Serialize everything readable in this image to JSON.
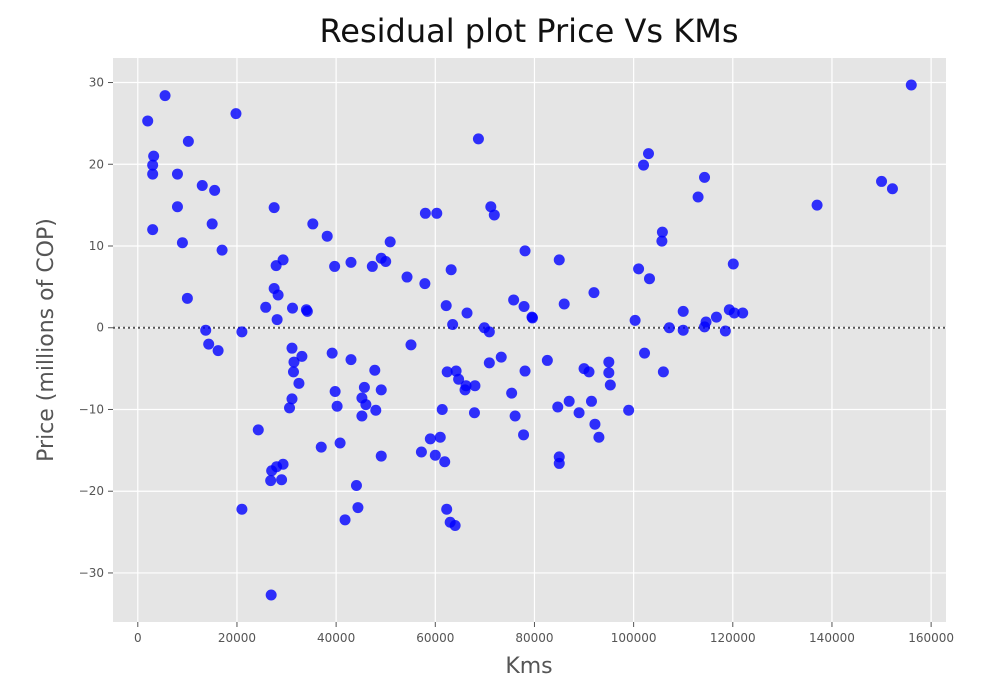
{
  "chart_data": {
    "type": "scatter",
    "title": "Residual plot Price Vs KMs",
    "xlabel": "Kms",
    "ylabel": "Price (millions of COP)",
    "xlim": [
      -5000,
      163000
    ],
    "ylim": [
      -36,
      33
    ],
    "xticks": [
      0,
      20000,
      40000,
      60000,
      80000,
      100000,
      120000,
      140000,
      160000
    ],
    "yticks": [
      -30,
      -20,
      -10,
      0,
      10,
      20,
      30
    ],
    "grid": true,
    "reference_line": 0,
    "point_color": "#0000ff",
    "background_color": "#e5e5e5",
    "points": [
      [
        2000,
        25.3
      ],
      [
        5500,
        28.4
      ],
      [
        3000,
        19.9
      ],
      [
        3200,
        21.0
      ],
      [
        3000,
        18.8
      ],
      [
        3000,
        12.0
      ],
      [
        8000,
        18.8
      ],
      [
        10200,
        22.8
      ],
      [
        13000,
        17.4
      ],
      [
        15500,
        16.8
      ],
      [
        8000,
        14.8
      ],
      [
        9000,
        10.4
      ],
      [
        15000,
        12.7
      ],
      [
        17000,
        9.5
      ],
      [
        10000,
        3.6
      ],
      [
        13700,
        -0.3
      ],
      [
        14300,
        -2.0
      ],
      [
        16200,
        -2.8
      ],
      [
        19800,
        26.2
      ],
      [
        21000,
        -0.5
      ],
      [
        21000,
        -22.2
      ],
      [
        24300,
        -12.5
      ],
      [
        25800,
        2.5
      ],
      [
        27500,
        14.7
      ],
      [
        27500,
        4.8
      ],
      [
        27900,
        7.6
      ],
      [
        28300,
        4.0
      ],
      [
        28100,
        1.0
      ],
      [
        29300,
        8.3
      ],
      [
        27000,
        -17.5
      ],
      [
        26800,
        -18.7
      ],
      [
        28000,
        -17.0
      ],
      [
        29300,
        -16.7
      ],
      [
        29000,
        -18.6
      ],
      [
        26900,
        -32.7
      ],
      [
        31200,
        2.4
      ],
      [
        31100,
        -2.5
      ],
      [
        31500,
        -4.2
      ],
      [
        31400,
        -5.4
      ],
      [
        32500,
        -6.8
      ],
      [
        33100,
        -3.5
      ],
      [
        31100,
        -8.7
      ],
      [
        30600,
        -9.8
      ],
      [
        34000,
        2.2
      ],
      [
        34200,
        2.0
      ],
      [
        35300,
        12.7
      ],
      [
        38200,
        11.2
      ],
      [
        39700,
        7.5
      ],
      [
        43000,
        8.0
      ],
      [
        47300,
        7.5
      ],
      [
        49100,
        8.5
      ],
      [
        50000,
        8.1
      ],
      [
        50900,
        10.5
      ],
      [
        39200,
        -3.1
      ],
      [
        39800,
        -7.8
      ],
      [
        40200,
        -9.6
      ],
      [
        43000,
        -3.9
      ],
      [
        47800,
        -5.2
      ],
      [
        45200,
        -8.6
      ],
      [
        46000,
        -9.4
      ],
      [
        45700,
        -7.3
      ],
      [
        49100,
        -7.6
      ],
      [
        48000,
        -10.1
      ],
      [
        45200,
        -10.8
      ],
      [
        37000,
        -14.6
      ],
      [
        40800,
        -14.1
      ],
      [
        49100,
        -15.7
      ],
      [
        44100,
        -19.3
      ],
      [
        44400,
        -22.0
      ],
      [
        41800,
        -23.5
      ],
      [
        54300,
        6.2
      ],
      [
        57900,
        5.4
      ],
      [
        58000,
        14.0
      ],
      [
        60300,
        14.0
      ],
      [
        55100,
        -2.1
      ],
      [
        57200,
        -15.2
      ],
      [
        59000,
        -13.6
      ],
      [
        61000,
        -13.4
      ],
      [
        60000,
        -15.6
      ],
      [
        61900,
        -16.4
      ],
      [
        61400,
        -10.0
      ],
      [
        62200,
        2.7
      ],
      [
        63200,
        7.1
      ],
      [
        63500,
        0.4
      ],
      [
        64200,
        -5.3
      ],
      [
        62400,
        -5.4
      ],
      [
        64700,
        -6.3
      ],
      [
        66000,
        -7.6
      ],
      [
        66200,
        -7.1
      ],
      [
        66400,
        1.8
      ],
      [
        68000,
        -7.1
      ],
      [
        67900,
        -10.4
      ],
      [
        62300,
        -22.2
      ],
      [
        63000,
        -23.8
      ],
      [
        64000,
        -24.2
      ],
      [
        68700,
        23.1
      ],
      [
        69900,
        0.0
      ],
      [
        70900,
        -0.5
      ],
      [
        71200,
        14.8
      ],
      [
        71900,
        13.8
      ],
      [
        70900,
        -4.3
      ],
      [
        73300,
        -3.6
      ],
      [
        75400,
        -8.0
      ],
      [
        75800,
        3.4
      ],
      [
        76100,
        -10.8
      ],
      [
        77900,
        2.6
      ],
      [
        78100,
        9.4
      ],
      [
        78100,
        -5.3
      ],
      [
        77800,
        -13.1
      ],
      [
        79500,
        1.3
      ],
      [
        79600,
        1.2
      ],
      [
        82600,
        -4.0
      ],
      [
        84700,
        -9.7
      ],
      [
        85000,
        8.3
      ],
      [
        85000,
        -15.8
      ],
      [
        85000,
        -16.6
      ],
      [
        86000,
        2.9
      ],
      [
        87000,
        -9.0
      ],
      [
        89000,
        -10.4
      ],
      [
        90000,
        -5.0
      ],
      [
        91000,
        -5.4
      ],
      [
        91500,
        -9.0
      ],
      [
        92000,
        4.3
      ],
      [
        92200,
        -11.8
      ],
      [
        93000,
        -13.4
      ],
      [
        95000,
        -4.2
      ],
      [
        95000,
        -5.5
      ],
      [
        95300,
        -7.0
      ],
      [
        99000,
        -10.1
      ],
      [
        100300,
        0.9
      ],
      [
        101000,
        7.2
      ],
      [
        102000,
        19.9
      ],
      [
        103000,
        21.3
      ],
      [
        102200,
        -3.1
      ],
      [
        103200,
        6.0
      ],
      [
        105800,
        11.7
      ],
      [
        105700,
        10.6
      ],
      [
        106000,
        -5.4
      ],
      [
        107200,
        0.0
      ],
      [
        110000,
        2.0
      ],
      [
        110000,
        -0.3
      ],
      [
        113000,
        16.0
      ],
      [
        114300,
        18.4
      ],
      [
        114300,
        0.1
      ],
      [
        114600,
        0.7
      ],
      [
        116700,
        1.3
      ],
      [
        118500,
        -0.4
      ],
      [
        119300,
        2.2
      ],
      [
        120100,
        7.8
      ],
      [
        120300,
        1.8
      ],
      [
        122000,
        1.8
      ],
      [
        137000,
        15.0
      ],
      [
        150000,
        17.9
      ],
      [
        152200,
        17.0
      ],
      [
        156000,
        29.7
      ]
    ]
  }
}
